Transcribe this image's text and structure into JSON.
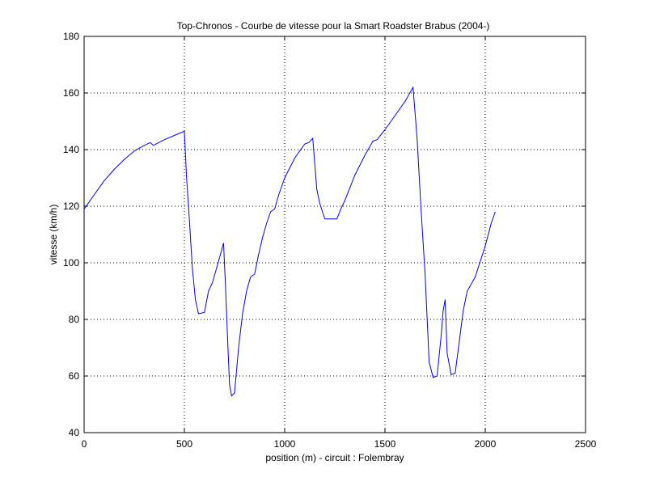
{
  "chart_data": {
    "type": "line",
    "title": "Top-Chronos - Courbe de vitesse pour la Smart Roadster Brabus (2004-)",
    "xlabel": "position (m) - circuit : Folembray",
    "ylabel": "vitesse (km/h)",
    "xlim": [
      0,
      2500
    ],
    "ylim": [
      40,
      180
    ],
    "xticks": [
      0,
      500,
      1000,
      1500,
      2000,
      2500
    ],
    "yticks": [
      40,
      60,
      80,
      100,
      120,
      140,
      160,
      180
    ],
    "grid": true,
    "line_color": "#0000ff",
    "series": [
      {
        "x": [
          0,
          50,
          100,
          150,
          200,
          250,
          300,
          330,
          345,
          400,
          450,
          500,
          510,
          525,
          540,
          555,
          570,
          600,
          620,
          640,
          660,
          680,
          695,
          705,
          715,
          725,
          735,
          750,
          770,
          790,
          810,
          830,
          850,
          870,
          890,
          910,
          930,
          950,
          970,
          1000,
          1050,
          1100,
          1120,
          1140,
          1160,
          1175,
          1200,
          1220,
          1240,
          1260,
          1280,
          1300,
          1350,
          1400,
          1440,
          1460,
          1500,
          1550,
          1600,
          1640,
          1660,
          1680,
          1700,
          1720,
          1740,
          1760,
          1780,
          1790,
          1800,
          1810,
          1830,
          1850,
          1870,
          1890,
          1910,
          1950,
          2000,
          2030,
          2050
        ],
        "y": [
          119,
          124,
          129,
          133,
          136.5,
          139.5,
          141.5,
          142.5,
          141.5,
          143.5,
          145,
          146.5,
          131,
          115,
          98,
          87,
          82,
          82.5,
          90,
          93,
          98,
          103,
          107,
          92,
          74,
          57,
          53,
          54,
          70,
          82,
          90,
          95,
          96,
          103,
          109,
          114,
          118,
          119,
          124,
          130,
          137,
          142,
          142.5,
          144,
          126,
          121,
          115.5,
          115.5,
          115.5,
          115.5,
          119,
          122,
          131,
          138,
          143,
          143.5,
          147,
          152,
          157,
          162,
          144,
          119,
          96,
          65,
          59.5,
          60,
          74,
          83,
          87,
          68,
          60.5,
          61,
          72,
          83,
          90,
          95,
          106,
          114,
          118
        ]
      }
    ]
  }
}
